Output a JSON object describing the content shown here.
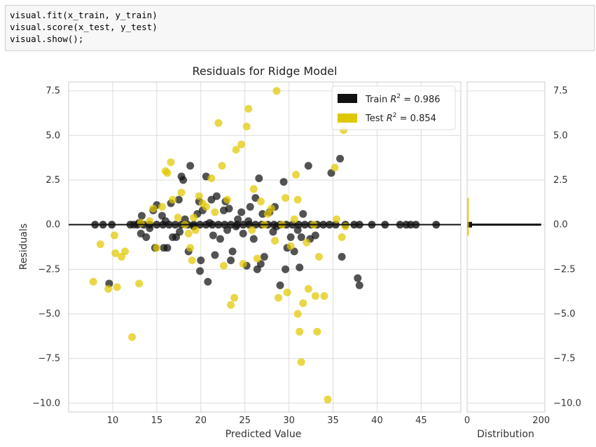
{
  "code": {
    "lines": [
      "visual.fit(x_train, y_train)",
      "visual.score(x_test, y_test)",
      "visual.show();"
    ]
  },
  "colors": {
    "train": "#111111",
    "test": "#e0c800",
    "grid": "#dcdcdc",
    "axis": "#cccccc",
    "zero_line": "#111111"
  },
  "chart_data": {
    "type": "scatter",
    "title": "Residuals for Ridge Model",
    "xlabel": "Predicted Value",
    "ylabel": "Residuals",
    "xlim": [
      5,
      49.5
    ],
    "ylim": [
      -10.5,
      8.0
    ],
    "xticks": [
      10,
      15,
      20,
      25,
      30,
      35,
      40,
      45
    ],
    "yticks": [
      7.5,
      5.0,
      2.5,
      0.0,
      -2.5,
      -5.0,
      -7.5,
      -10.0
    ],
    "ytick_labels": [
      "7.5",
      "5.0",
      "2.5",
      "0.0",
      "−2.5",
      "−5.0",
      "−7.5",
      "−10.0"
    ],
    "grid": true,
    "legend_position": "top-right",
    "legend": [
      {
        "name": "Train",
        "label_prefix": "Train ",
        "label_suffix": " = 0.986"
      },
      {
        "name": "Test",
        "label_prefix": "Test ",
        "label_suffix": " = 0.854"
      }
    ],
    "hist_panel": {
      "xlabel": "Distribution",
      "xlim": [
        0,
        210
      ],
      "xticks": [
        0,
        200
      ],
      "ytick_labels": [
        "7.5",
        "5.0",
        "2.5",
        "0.0",
        "−2.5",
        "−5.0",
        "−7.5",
        "−10.0"
      ]
    },
    "series": [
      {
        "name": "Train",
        "points": [
          [
            9.6,
            -3.3
          ],
          [
            12.4,
            0
          ],
          [
            13.0,
            0.1
          ],
          [
            13.2,
            -0.5
          ],
          [
            13.3,
            0.5
          ],
          [
            13.8,
            -0.7
          ],
          [
            14.2,
            -0.2
          ],
          [
            14.6,
            0.8
          ],
          [
            14.8,
            -1.3
          ],
          [
            15.0,
            1.1
          ],
          [
            15.6,
            0.5
          ],
          [
            15.8,
            -1.3
          ],
          [
            16.2,
            -1.3
          ],
          [
            16.6,
            1.2
          ],
          [
            16.8,
            -0.7
          ],
          [
            17.2,
            -0.7
          ],
          [
            17.5,
            1.4
          ],
          [
            17.6,
            -0.4
          ],
          [
            17.8,
            2.7
          ],
          [
            18.0,
            2.5
          ],
          [
            18.2,
            0.3
          ],
          [
            18.6,
            -1.5
          ],
          [
            18.8,
            3.3
          ],
          [
            19.2,
            -0.1
          ],
          [
            19.8,
            1.3
          ],
          [
            19.9,
            -2.6
          ],
          [
            20.0,
            -2.0
          ],
          [
            20.2,
            0.8
          ],
          [
            20.6,
            2.7
          ],
          [
            20.8,
            -3.2
          ],
          [
            21.0,
            0.1
          ],
          [
            21.2,
            1.4
          ],
          [
            21.4,
            -0.6
          ],
          [
            21.6,
            -1.7
          ],
          [
            21.8,
            1.6
          ],
          [
            22.2,
            -0.8
          ],
          [
            22.6,
            0.8
          ],
          [
            22.8,
            1.3
          ],
          [
            23.2,
            0.9
          ],
          [
            23.4,
            -2.0
          ],
          [
            23.6,
            -1.5
          ],
          [
            24.0,
            -0.1
          ],
          [
            24.2,
            0.3
          ],
          [
            24.6,
            0.7
          ],
          [
            24.8,
            -0.5
          ],
          [
            25.2,
            -2.3
          ],
          [
            25.4,
            0.2
          ],
          [
            25.6,
            1.0
          ],
          [
            26.0,
            -0.8
          ],
          [
            26.2,
            1.5
          ],
          [
            26.4,
            -2.5
          ],
          [
            26.6,
            2.6
          ],
          [
            26.8,
            -2.2
          ],
          [
            27.0,
            0.6
          ],
          [
            27.2,
            -1.8
          ],
          [
            27.8,
            0.7
          ],
          [
            28.2,
            -0.4
          ],
          [
            28.4,
            1.0
          ],
          [
            28.6,
            -0.1
          ],
          [
            29.0,
            -3.4
          ],
          [
            29.4,
            2.4
          ],
          [
            29.6,
            -2.5
          ],
          [
            29.8,
            -1.3
          ],
          [
            30.2,
            -0.7
          ],
          [
            30.6,
            -1.5
          ],
          [
            31.0,
            -0.3
          ],
          [
            31.2,
            -2.4
          ],
          [
            31.4,
            -0.7
          ],
          [
            31.6,
            0.6
          ],
          [
            32.2,
            3.3
          ],
          [
            32.4,
            -0.8
          ],
          [
            33.0,
            -0.6
          ],
          [
            34.8,
            2.9
          ],
          [
            35.8,
            3.7
          ],
          [
            36.0,
            -1.8
          ],
          [
            37.8,
            -3.0
          ],
          [
            38.0,
            -3.4
          ],
          [
            23.0,
            -0.3
          ],
          [
            19.6,
            0.6
          ],
          [
            16.0,
            0.2
          ]
        ],
        "zero_band_x": [
          8.0,
          8.9,
          9.9,
          12.0,
          12.8,
          13.5,
          14.2,
          15.0,
          15.7,
          16.4,
          17.1,
          17.8,
          18.5,
          19.2,
          19.9,
          20.6,
          21.3,
          22.0,
          22.7,
          23.4,
          24.1,
          24.8,
          25.5,
          26.2,
          26.9,
          27.6,
          28.3,
          29.0,
          29.7,
          30.4,
          31.1,
          31.8,
          32.5,
          33.2,
          33.9,
          34.6,
          35.3,
          36.4,
          37.4,
          38.0,
          39.4,
          40.9,
          42.6,
          43.3,
          43.8,
          44.4,
          46.7
        ]
      },
      {
        "name": "Test",
        "points": [
          [
            7.8,
            -3.2
          ],
          [
            8.6,
            -1.1
          ],
          [
            9.5,
            -3.6
          ],
          [
            10.2,
            -0.6
          ],
          [
            10.3,
            -1.6
          ],
          [
            10.5,
            -3.5
          ],
          [
            11.0,
            -1.8
          ],
          [
            11.4,
            -1.5
          ],
          [
            12.2,
            -6.3
          ],
          [
            13.0,
            -3.3
          ],
          [
            13.2,
            0.1
          ],
          [
            14.2,
            0.2
          ],
          [
            15.0,
            -1.3
          ],
          [
            15.6,
            1.0
          ],
          [
            16.0,
            3.0
          ],
          [
            16.2,
            2.9
          ],
          [
            16.6,
            3.5
          ],
          [
            16.8,
            1.4
          ],
          [
            17.4,
            0.4
          ],
          [
            17.8,
            1.8
          ],
          [
            18.2,
            0.0
          ],
          [
            18.6,
            -0.5
          ],
          [
            18.8,
            -1.3
          ],
          [
            19.0,
            -2.0
          ],
          [
            19.2,
            0.4
          ],
          [
            19.8,
            1.6
          ],
          [
            20.2,
            1.2
          ],
          [
            20.6,
            1.0
          ],
          [
            21.2,
            2.6
          ],
          [
            21.6,
            0.7
          ],
          [
            22.0,
            5.7
          ],
          [
            22.4,
            3.3
          ],
          [
            22.6,
            -2.3
          ],
          [
            23.0,
            1.4
          ],
          [
            23.4,
            -4.5
          ],
          [
            23.8,
            -4.1
          ],
          [
            24.0,
            4.2
          ],
          [
            24.6,
            4.5
          ],
          [
            24.8,
            -2.2
          ],
          [
            25.2,
            5.5
          ],
          [
            25.4,
            6.5
          ],
          [
            26.0,
            2.0
          ],
          [
            26.4,
            -1.9
          ],
          [
            26.8,
            1.3
          ],
          [
            27.2,
            0.0
          ],
          [
            27.6,
            0.6
          ],
          [
            28.0,
            0.9
          ],
          [
            28.4,
            -0.9
          ],
          [
            28.6,
            7.5
          ],
          [
            28.8,
            -4.1
          ],
          [
            29.2,
            0.0
          ],
          [
            29.6,
            1.5
          ],
          [
            29.8,
            -3.8
          ],
          [
            30.2,
            -1.2
          ],
          [
            30.6,
            0.3
          ],
          [
            30.8,
            2.8
          ],
          [
            31.0,
            -5.0
          ],
          [
            31.2,
            -6.0
          ],
          [
            31.4,
            -7.7
          ],
          [
            31.0,
            1.4
          ],
          [
            31.6,
            -4.4
          ],
          [
            32.0,
            -1.0
          ],
          [
            32.2,
            -3.6
          ],
          [
            32.8,
            0.0
          ],
          [
            33.0,
            -4.0
          ],
          [
            33.2,
            -6.0
          ],
          [
            33.4,
            -1.8
          ],
          [
            34.0,
            -4.0
          ],
          [
            34.4,
            -9.8
          ],
          [
            35.2,
            3.2
          ],
          [
            35.4,
            0.3
          ],
          [
            36.0,
            -0.7
          ],
          [
            36.2,
            5.3
          ],
          [
            36.4,
            -0.1
          ],
          [
            19.4,
            -0.3
          ],
          [
            14.6,
            0.9
          ],
          [
            25.8,
            -0.3
          ]
        ]
      }
    ]
  }
}
